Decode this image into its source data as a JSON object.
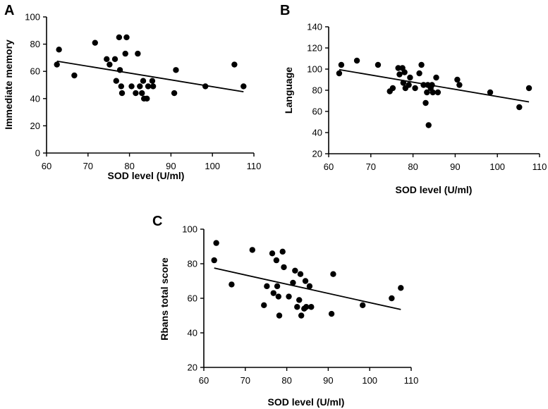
{
  "chart_data": [
    {
      "panel": "A",
      "type": "scatter",
      "xlabel": "SOD level (U/ml)",
      "ylabel": "Immediate memory",
      "xlim": [
        60,
        110
      ],
      "ylim": [
        0,
        100
      ],
      "xticks": [
        60,
        70,
        80,
        90,
        100,
        110
      ],
      "yticks": [
        0,
        20,
        40,
        60,
        80,
        100
      ],
      "points": [
        [
          62.5,
          65
        ],
        [
          63,
          76
        ],
        [
          66.7,
          57
        ],
        [
          71.7,
          81
        ],
        [
          74.5,
          69
        ],
        [
          75.2,
          65
        ],
        [
          76.5,
          69
        ],
        [
          76.8,
          53
        ],
        [
          77.5,
          85
        ],
        [
          77.7,
          61
        ],
        [
          78,
          49
        ],
        [
          78.2,
          44
        ],
        [
          79,
          73
        ],
        [
          79.3,
          85
        ],
        [
          80.5,
          49
        ],
        [
          81.5,
          44
        ],
        [
          82,
          73
        ],
        [
          82.5,
          49
        ],
        [
          83,
          44
        ],
        [
          83.3,
          53
        ],
        [
          83.5,
          40
        ],
        [
          84.2,
          40
        ],
        [
          84.5,
          49
        ],
        [
          85.5,
          53
        ],
        [
          85.7,
          49
        ],
        [
          90.8,
          44
        ],
        [
          91.2,
          61
        ],
        [
          98.3,
          49
        ],
        [
          105.3,
          65
        ],
        [
          107.5,
          49
        ]
      ],
      "fit": {
        "x": [
          62.5,
          107.5
        ],
        "y": [
          67.5,
          45
        ]
      }
    },
    {
      "panel": "B",
      "type": "scatter",
      "xlabel": "SOD level (U/ml)",
      "ylabel": "Language",
      "xlim": [
        60,
        110
      ],
      "ylim": [
        20,
        140
      ],
      "xticks": [
        60,
        70,
        80,
        90,
        100,
        110
      ],
      "yticks": [
        20,
        40,
        60,
        80,
        100,
        120,
        140
      ],
      "points": [
        [
          62.5,
          96
        ],
        [
          63,
          104
        ],
        [
          66.7,
          108
        ],
        [
          71.7,
          104
        ],
        [
          74.5,
          79
        ],
        [
          75.2,
          82
        ],
        [
          76.5,
          101
        ],
        [
          76.8,
          95
        ],
        [
          77.5,
          101
        ],
        [
          77.7,
          87
        ],
        [
          78,
          97
        ],
        [
          78.2,
          82
        ],
        [
          79,
          85
        ],
        [
          79.3,
          92
        ],
        [
          80.5,
          82
        ],
        [
          81.5,
          96
        ],
        [
          82,
          104
        ],
        [
          82.5,
          85
        ],
        [
          83,
          68
        ],
        [
          83.3,
          78
        ],
        [
          83.5,
          85
        ],
        [
          83.7,
          47
        ],
        [
          84.2,
          82
        ],
        [
          84.5,
          85
        ],
        [
          84.7,
          78
        ],
        [
          85.5,
          92
        ],
        [
          85.9,
          78
        ],
        [
          90.5,
          90
        ],
        [
          91,
          85
        ],
        [
          98.3,
          78
        ],
        [
          105.2,
          64
        ],
        [
          107.5,
          82
        ]
      ],
      "fit": {
        "x": [
          62.5,
          107.5
        ],
        "y": [
          99.5,
          69
        ]
      }
    },
    {
      "panel": "C",
      "type": "scatter",
      "xlabel": "SOD level (U/ml)",
      "ylabel": "Rbans total score",
      "xlim": [
        60,
        110
      ],
      "ylim": [
        20,
        100
      ],
      "xticks": [
        60,
        70,
        80,
        90,
        100,
        110
      ],
      "yticks": [
        20,
        40,
        60,
        80,
        100
      ],
      "points": [
        [
          62.5,
          82
        ],
        [
          63,
          92
        ],
        [
          66.7,
          68
        ],
        [
          71.7,
          88
        ],
        [
          74.5,
          56
        ],
        [
          75.2,
          67
        ],
        [
          76.5,
          86
        ],
        [
          76.8,
          63
        ],
        [
          77.5,
          82
        ],
        [
          77.7,
          67
        ],
        [
          78,
          61
        ],
        [
          78.2,
          50
        ],
        [
          79,
          87
        ],
        [
          79.3,
          78
        ],
        [
          80.5,
          61
        ],
        [
          81.5,
          69
        ],
        [
          82,
          76
        ],
        [
          82.5,
          55
        ],
        [
          83,
          59
        ],
        [
          83.3,
          74
        ],
        [
          83.5,
          50
        ],
        [
          84.2,
          54
        ],
        [
          84.5,
          70
        ],
        [
          84.7,
          55
        ],
        [
          85.5,
          67
        ],
        [
          85.9,
          55
        ],
        [
          90.8,
          51
        ],
        [
          91.2,
          74
        ],
        [
          98.3,
          56
        ],
        [
          105.3,
          60
        ],
        [
          107.5,
          66
        ]
      ],
      "fit": {
        "x": [
          62.5,
          107.5
        ],
        "y": [
          77.5,
          53.5
        ]
      }
    }
  ]
}
